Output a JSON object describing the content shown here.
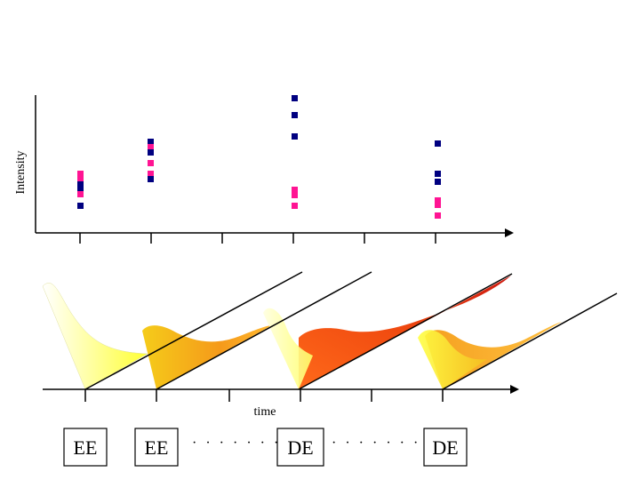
{
  "top_plot": {
    "ylabel": "Intensity",
    "blue": "#000080",
    "pink": "#ff1493",
    "columns": [
      {
        "blue": [
          [
            1,
            1
          ],
          [
            2,
            1
          ],
          [
            3,
            0
          ]
        ],
        "pink": [
          [
            4,
            2
          ],
          [
            5,
            1
          ],
          [
            6,
            1
          ]
        ]
      },
      {
        "blue": [
          [
            7,
            2
          ],
          [
            8,
            1
          ],
          [
            9,
            1
          ]
        ],
        "pink": [
          [
            10,
            1
          ],
          [
            11,
            1
          ],
          [
            12,
            1
          ]
        ]
      },
      {
        "blue": [
          [
            13,
            1
          ],
          [
            14,
            1
          ],
          [
            15,
            1
          ]
        ],
        "pink": [
          [
            16,
            1
          ],
          [
            17,
            1
          ],
          [
            18,
            0
          ]
        ]
      },
      {
        "blue": [
          [
            19,
            1
          ],
          [
            20,
            1
          ],
          [
            21,
            0
          ]
        ],
        "pink": [
          [
            22,
            1
          ],
          [
            23,
            1
          ],
          [
            24,
            0
          ]
        ]
      }
    ]
  },
  "bottom_plot": {
    "xlabel": "time",
    "stages": [
      "EE",
      "EE",
      "DE",
      "DE"
    ],
    "separator": "· · · · · · ·"
  }
}
